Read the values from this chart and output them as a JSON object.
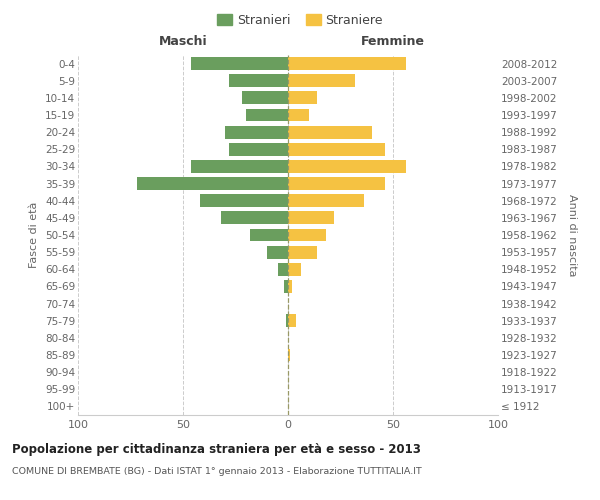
{
  "age_groups": [
    "100+",
    "95-99",
    "90-94",
    "85-89",
    "80-84",
    "75-79",
    "70-74",
    "65-69",
    "60-64",
    "55-59",
    "50-54",
    "45-49",
    "40-44",
    "35-39",
    "30-34",
    "25-29",
    "20-24",
    "15-19",
    "10-14",
    "5-9",
    "0-4"
  ],
  "birth_years": [
    "≤ 1912",
    "1913-1917",
    "1918-1922",
    "1923-1927",
    "1928-1932",
    "1933-1937",
    "1938-1942",
    "1943-1947",
    "1948-1952",
    "1953-1957",
    "1958-1962",
    "1963-1967",
    "1968-1972",
    "1973-1977",
    "1978-1982",
    "1983-1987",
    "1988-1992",
    "1993-1997",
    "1998-2002",
    "2003-2007",
    "2008-2012"
  ],
  "males": [
    0,
    0,
    0,
    0,
    0,
    1,
    0,
    2,
    5,
    10,
    18,
    32,
    42,
    72,
    46,
    28,
    30,
    20,
    22,
    28,
    46
  ],
  "females": [
    0,
    0,
    0,
    1,
    0,
    4,
    0,
    2,
    6,
    14,
    18,
    22,
    36,
    46,
    56,
    46,
    40,
    10,
    14,
    32,
    56
  ],
  "male_color": "#6a9e5e",
  "female_color": "#f5c242",
  "male_label": "Stranieri",
  "female_label": "Straniere",
  "title": "Popolazione per cittadinanza straniera per età e sesso - 2013",
  "subtitle": "COMUNE DI BREMBATE (BG) - Dati ISTAT 1° gennaio 2013 - Elaborazione TUTTITALIA.IT",
  "ylabel_left": "Fasce di età",
  "ylabel_right": "Anni di nascita",
  "xlabel_left": "Maschi",
  "xlabel_right": "Femmine",
  "xlim": 100,
  "background_color": "#ffffff",
  "grid_color": "#cccccc"
}
